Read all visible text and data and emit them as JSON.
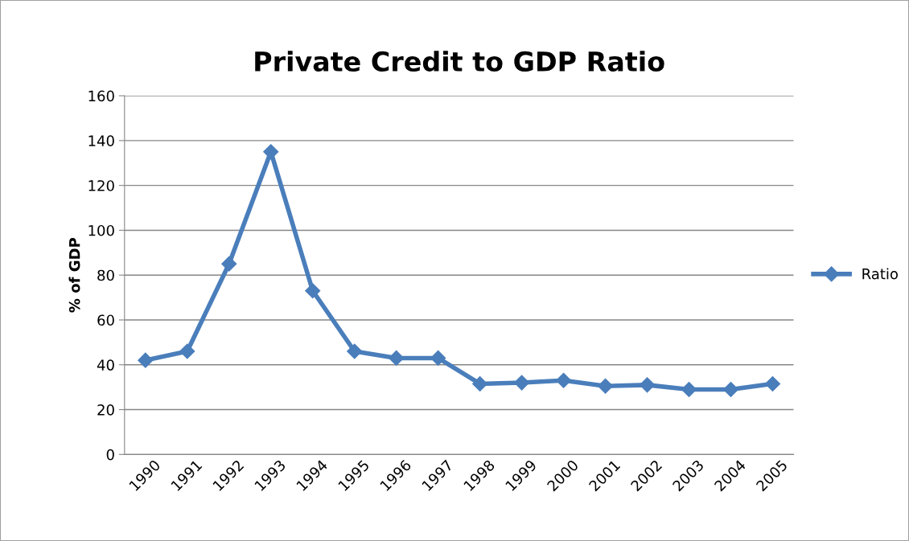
{
  "chart_data": {
    "type": "line",
    "title": "Private Credit to GDP Ratio",
    "ylabel": "% of GDP",
    "categories": [
      "1990",
      "1991",
      "1992",
      "1993",
      "1994",
      "1995",
      "1996",
      "1997",
      "1998",
      "1999",
      "2000",
      "2001",
      "2002",
      "2003",
      "2004",
      "2005"
    ],
    "series": [
      {
        "name": "Ratio",
        "color": "#4a7ebb",
        "values": [
          42,
          46,
          85,
          135,
          73,
          46,
          43,
          43,
          31.5,
          32,
          33,
          30.5,
          31,
          29,
          29,
          31.5
        ]
      }
    ],
    "ylim": [
      0,
      160
    ],
    "yticks": [
      0,
      20,
      40,
      60,
      80,
      100,
      120,
      140,
      160
    ],
    "grid": "y",
    "legend": "right",
    "marker": "diamond",
    "line_style": "solid"
  }
}
